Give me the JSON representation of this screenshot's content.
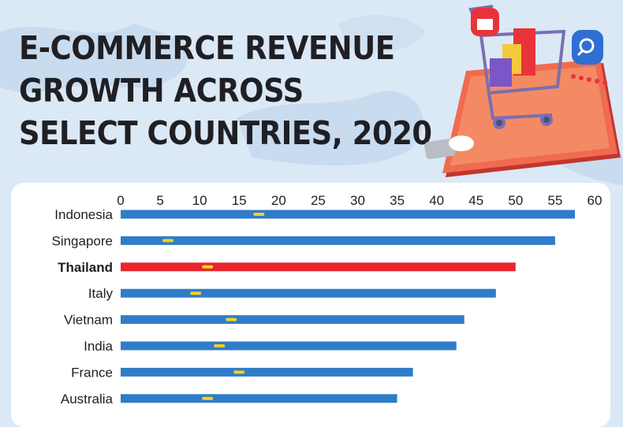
{
  "title_lines": [
    "E-COMMERCE REVENUE",
    "GROWTH ACROSS",
    "SELECT COUNTRIES, 2020"
  ],
  "colors": {
    "bar": "#2f7cc9",
    "highlight_bar": "#e8262b",
    "marker": "#f5d21f",
    "background": "#dbe8f5",
    "text": "#1f1f24"
  },
  "illustration": {
    "icons": [
      "shopping-cart-icon",
      "smartphone-icon",
      "store-pin-icon",
      "search-pin-icon",
      "shopping-bag-icon",
      "rating-stars-icon"
    ]
  },
  "chart_data": {
    "type": "bar",
    "orientation": "horizontal",
    "title": "E-COMMERCE REVENUE GROWTH ACROSS SELECT COUNTRIES, 2020",
    "xlim": [
      0,
      60
    ],
    "x_ticks": [
      0,
      5,
      10,
      15,
      20,
      25,
      30,
      35,
      40,
      45,
      50,
      55,
      60
    ],
    "highlight": "Thailand",
    "categories": [
      "Indonesia",
      "Singapore",
      "Thailand",
      "Italy",
      "Vietnam",
      "India",
      "France",
      "Australia"
    ],
    "values": [
      57.5,
      55,
      50,
      47.5,
      43.5,
      42.5,
      37,
      35
    ],
    "markers": [
      17.5,
      6,
      11,
      9.5,
      14,
      12.5,
      15,
      11
    ]
  }
}
